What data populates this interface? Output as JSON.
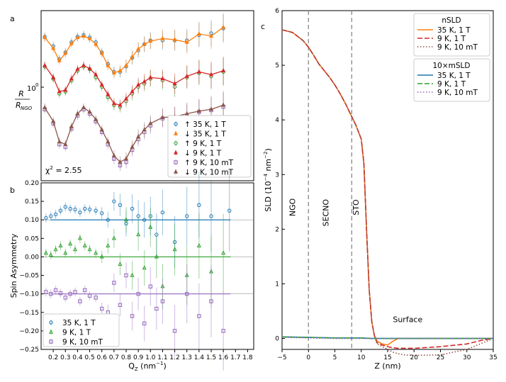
{
  "chart_data": [
    {
      "panel_label": "a",
      "type": "scatter",
      "ylabel": "R / R_NGO",
      "ylabel_num": "R",
      "ylabel_den": "R",
      "ylabel_den_sub": "NGO",
      "ytick_label": "10",
      "ytick_exp": "0",
      "yscale": "log",
      "xlim": [
        0.1,
        1.85
      ],
      "annotation": "χ² = 2.55",
      "annotation_base": "χ",
      "annotation_rest": " = 2.55",
      "legend": [
        "↑  35 K, 1 T",
        "↓  35 K, 1 T",
        "↑    9 K, 1 T",
        "↓    9 K, 1 T",
        "↑    9 K, 10 mT",
        "↓    9 K, 10 mT"
      ],
      "legend_position": "lower-right",
      "series": [
        {
          "name": "↑  35 K, 1 T",
          "color": "#1f77b4",
          "marker": "circle",
          "x": [
            0.13,
            0.2,
            0.25,
            0.3,
            0.35,
            0.4,
            0.45,
            0.5,
            0.55,
            0.6,
            0.65,
            0.7,
            0.75,
            0.8,
            0.85,
            0.9,
            0.95,
            1.0,
            1.1,
            1.2,
            1.3,
            1.4,
            1.5,
            1.6
          ],
          "y": [
            230,
            205,
            175,
            190,
            215,
            230,
            235,
            228,
            215,
            190,
            165,
            150,
            150,
            160,
            178,
            195,
            210,
            220,
            220,
            220,
            220,
            235,
            240,
            255
          ]
        },
        {
          "name": "↓  35 K, 1 T",
          "color": "#ff7f0e",
          "marker": "triangle",
          "x": [
            0.13,
            0.2,
            0.25,
            0.3,
            0.35,
            0.4,
            0.45,
            0.5,
            0.55,
            0.6,
            0.65,
            0.7,
            0.75,
            0.8,
            0.85,
            0.9,
            0.95,
            1.0,
            1.1,
            1.2,
            1.3,
            1.4,
            1.5,
            1.6
          ],
          "y": [
            228,
            200,
            172,
            188,
            212,
            228,
            232,
            225,
            210,
            188,
            162,
            148,
            152,
            162,
            180,
            198,
            210,
            218,
            225,
            222,
            215,
            238,
            232,
            258
          ]
        },
        {
          "name": "↑    9 K, 1 T",
          "color": "#2ca02c",
          "marker": "circle",
          "x": [
            0.13,
            0.2,
            0.25,
            0.3,
            0.35,
            0.4,
            0.45,
            0.5,
            0.55,
            0.6,
            0.65,
            0.7,
            0.75,
            0.8,
            0.85,
            0.9,
            0.95,
            1.0,
            1.1,
            1.2,
            1.3,
            1.4,
            1.5,
            1.6
          ],
          "y": [
            160,
            138,
            115,
            118,
            135,
            152,
            160,
            155,
            140,
            125,
            110,
            100,
            98,
            105,
            115,
            125,
            130,
            138,
            135,
            125,
            140,
            148,
            142,
            150
          ]
        },
        {
          "name": "↓    9 K, 1 T",
          "color": "#d62728",
          "marker": "triangle",
          "x": [
            0.13,
            0.2,
            0.25,
            0.3,
            0.35,
            0.4,
            0.45,
            0.5,
            0.55,
            0.6,
            0.65,
            0.7,
            0.75,
            0.8,
            0.85,
            0.9,
            0.95,
            1.0,
            1.1,
            1.2,
            1.3,
            1.4,
            1.5,
            1.6
          ],
          "y": [
            162,
            140,
            118,
            120,
            138,
            155,
            162,
            156,
            145,
            128,
            114,
            102,
            100,
            108,
            118,
            128,
            133,
            140,
            138,
            130,
            142,
            150,
            145,
            152
          ]
        },
        {
          "name": "↑    9 K, 10 mT",
          "color": "#9467bd",
          "marker": "square",
          "x": [
            0.13,
            0.2,
            0.25,
            0.3,
            0.35,
            0.4,
            0.45,
            0.5,
            0.55,
            0.6,
            0.65,
            0.7,
            0.75,
            0.8,
            0.85,
            0.9,
            0.95,
            1.0,
            1.1,
            1.2,
            1.3,
            1.4,
            1.5,
            1.6
          ],
          "y": [
            95,
            80,
            62,
            60,
            75,
            88,
            95,
            90,
            82,
            72,
            62,
            52,
            48,
            50,
            58,
            66,
            72,
            78,
            85,
            86,
            88,
            92,
            94,
            98
          ]
        },
        {
          "name": "↓    9 K, 10 mT",
          "color": "#8c564b",
          "marker": "triangle",
          "x": [
            0.13,
            0.2,
            0.25,
            0.3,
            0.35,
            0.4,
            0.45,
            0.5,
            0.55,
            0.6,
            0.65,
            0.7,
            0.75,
            0.8,
            0.85,
            0.9,
            0.95,
            1.0,
            1.1,
            1.2,
            1.3,
            1.4,
            1.5,
            1.6
          ],
          "y": [
            97,
            82,
            64,
            62,
            77,
            90,
            97,
            92,
            84,
            74,
            64,
            54,
            50,
            52,
            60,
            68,
            74,
            80,
            86,
            87,
            90,
            93,
            95,
            100
          ]
        }
      ]
    },
    {
      "panel_label": "b",
      "type": "scatter",
      "xlabel": "Q",
      "xlabel_sub": "Z",
      "xlabel_unit": "  (nm",
      "xlabel_sup": "−1",
      "xlabel_close": ")",
      "ylabel": "Spin Asymmetry",
      "xlim": [
        0.1,
        1.85
      ],
      "ylim": [
        -0.25,
        0.2
      ],
      "xticks": [
        0.2,
        0.3,
        0.4,
        0.5,
        0.6,
        0.7,
        0.8,
        0.9,
        1.0,
        1.1,
        1.2,
        1.3,
        1.4,
        1.5,
        1.6,
        1.7,
        1.8
      ],
      "xtick_labels": [
        "0.2",
        "0.3",
        "0.4",
        "0.5",
        "0.6",
        "0.7",
        "0.8",
        "0.9",
        "1.0",
        "1.1",
        "1.2",
        "1.3",
        "1.4",
        "1.5",
        "1.6",
        "1.7",
        "1.8"
      ],
      "yticks": [
        -0.25,
        -0.2,
        -0.15,
        -0.1,
        -0.05,
        0.0,
        0.05,
        0.1,
        0.15,
        0.2
      ],
      "ytick_labels": [
        "−0.25",
        "−0.20",
        "−0.15",
        "−0.10",
        "−0.05",
        "0.00",
        "0.05",
        "0.10",
        "0.15",
        "0.20"
      ],
      "reference_lines": [
        0.1,
        0.0,
        -0.1
      ],
      "legend": [
        "35 K, 1 T",
        "9 K, 1 T",
        "9 K, 10 mT"
      ],
      "legend_position": "lower-left",
      "series": [
        {
          "name": "35 K, 1 T",
          "color": "#1f77b4",
          "marker": "circle",
          "offset": 0.1,
          "x": [
            0.14,
            0.18,
            0.22,
            0.26,
            0.3,
            0.34,
            0.38,
            0.42,
            0.46,
            0.5,
            0.55,
            0.6,
            0.65,
            0.7,
            0.75,
            0.8,
            0.85,
            0.9,
            0.95,
            1.0,
            1.05,
            1.1,
            1.2,
            1.3,
            1.4,
            1.5,
            1.65
          ],
          "y": [
            0.105,
            0.11,
            0.115,
            0.125,
            0.135,
            0.13,
            0.128,
            0.12,
            0.13,
            0.128,
            0.125,
            0.118,
            0.1,
            0.15,
            0.14,
            0.09,
            0.13,
            0.11,
            0.1,
            0.11,
            0.06,
            0.12,
            0.04,
            0.11,
            0.14,
            0.11,
            0.125
          ]
        },
        {
          "name": "9 K, 1 T",
          "color": "#2ca02c",
          "marker": "triangle",
          "offset": 0.0,
          "x": [
            0.14,
            0.18,
            0.22,
            0.26,
            0.3,
            0.34,
            0.38,
            0.42,
            0.46,
            0.5,
            0.55,
            0.6,
            0.65,
            0.7,
            0.75,
            0.8,
            0.85,
            0.9,
            0.95,
            1.0,
            1.05,
            1.1,
            1.2,
            1.3,
            1.4,
            1.5,
            1.6
          ],
          "y": [
            0.01,
            0.005,
            0.02,
            0.03,
            0.01,
            0.035,
            0.02,
            0.05,
            0.03,
            0.02,
            0.01,
            0.0,
            0.03,
            0.05,
            -0.02,
            0.1,
            -0.05,
            0.06,
            -0.03,
            0.08,
            0.0,
            -0.08,
            0.02,
            -0.05,
            0.03,
            -0.04,
            0.01
          ]
        },
        {
          "name": "9 K, 10 mT",
          "color": "#9467bd",
          "marker": "square",
          "offset": -0.1,
          "x": [
            0.14,
            0.18,
            0.22,
            0.26,
            0.3,
            0.34,
            0.38,
            0.42,
            0.46,
            0.5,
            0.55,
            0.6,
            0.65,
            0.7,
            0.75,
            0.8,
            0.85,
            0.9,
            0.95,
            1.0,
            1.05,
            1.1,
            1.2,
            1.3,
            1.4,
            1.5,
            1.6
          ],
          "y": [
            -0.095,
            -0.1,
            -0.09,
            -0.098,
            -0.11,
            -0.1,
            -0.095,
            -0.12,
            -0.09,
            -0.105,
            -0.11,
            -0.14,
            -0.15,
            -0.07,
            -0.13,
            -0.05,
            -0.16,
            -0.1,
            -0.18,
            -0.08,
            -0.14,
            -0.12,
            -0.2,
            -0.1,
            -0.16,
            -0.12,
            -0.2
          ]
        }
      ]
    },
    {
      "panel_label": "c",
      "type": "line",
      "xlabel": "Z (nm)",
      "ylabel": "SLD (10",
      "ylabel_sup": "−4",
      "ylabel_mid": " nm",
      "ylabel_sup2": "−2",
      "ylabel_close": ")",
      "xlim": [
        -5,
        35
      ],
      "ylim": [
        -0.2,
        6
      ],
      "xticks": [
        -5,
        0,
        5,
        10,
        15,
        20,
        25,
        30,
        35
      ],
      "xtick_labels": [
        "−5",
        "0",
        "5",
        "10",
        "15",
        "20",
        "25",
        "30",
        "35"
      ],
      "yticks": [
        0,
        1,
        2,
        3,
        4,
        5,
        6
      ],
      "ytick_labels": [
        "0",
        "1",
        "2",
        "3",
        "4",
        "5",
        "6"
      ],
      "vertical_lines": [
        0,
        8.2
      ],
      "region_labels": [
        {
          "text": "NGO",
          "x": -2.5,
          "y": 2.4
        },
        {
          "text": "SECNO",
          "x": 3.8,
          "y": 2.3
        },
        {
          "text": "STO",
          "x": 9.5,
          "y": 2.4
        },
        {
          "text": "Surface",
          "x": 18.8,
          "y": 0.3
        }
      ],
      "legend_groups": [
        {
          "title": "nSLD",
          "entries": [
            "35 K, 1 T",
            "9 K, 1 T",
            "9 K, 10 mT"
          ]
        },
        {
          "title": "10×mSLD",
          "entries": [
            "35 K, 1 T",
            "9 K, 1 T",
            "9 K, 10 mT"
          ]
        }
      ],
      "legend_position": "upper-right",
      "series": [
        {
          "name": "35 K, 1 T",
          "group": "nSLD",
          "color": "#ff7f0e",
          "style": "solid",
          "x": [
            -5,
            -3,
            -1,
            0,
            1,
            2,
            3,
            4,
            5,
            6,
            7,
            8,
            9,
            10,
            10.5,
            11,
            11.5,
            12,
            12.5,
            13,
            14,
            15,
            16,
            17,
            18,
            20,
            25,
            30,
            35
          ],
          "y": [
            5.65,
            5.6,
            5.45,
            5.33,
            5.18,
            5.02,
            4.9,
            4.78,
            4.64,
            4.48,
            4.3,
            4.1,
            3.9,
            3.65,
            3.2,
            2.0,
            0.9,
            0.3,
            0.05,
            -0.05,
            -0.1,
            -0.12,
            -0.05,
            0,
            0,
            0,
            0,
            0,
            0
          ]
        },
        {
          "name": "9 K, 1 T",
          "group": "nSLD",
          "color": "#d62728",
          "style": "dashed",
          "x": [
            -5,
            -3,
            -1,
            0,
            1,
            2,
            3,
            4,
            5,
            6,
            7,
            8,
            9,
            10,
            10.5,
            11,
            11.5,
            12,
            12.5,
            13,
            14,
            15,
            16,
            17,
            18,
            20,
            25,
            30,
            33,
            35
          ],
          "y": [
            5.65,
            5.6,
            5.45,
            5.33,
            5.18,
            5.02,
            4.9,
            4.78,
            4.64,
            4.48,
            4.3,
            4.1,
            3.9,
            3.65,
            3.2,
            2.0,
            0.9,
            0.3,
            0.05,
            -0.08,
            -0.12,
            -0.15,
            -0.17,
            -0.18,
            -0.18,
            -0.18,
            -0.15,
            -0.1,
            -0.03,
            0
          ]
        },
        {
          "name": "9 K, 10 mT",
          "group": "nSLD",
          "color": "#8c564b",
          "style": "dotted",
          "x": [
            -5,
            -3,
            -1,
            0,
            1,
            2,
            3,
            4,
            5,
            6,
            7,
            8,
            9,
            10,
            10.5,
            11,
            11.5,
            12,
            12.5,
            13,
            14,
            15,
            16,
            17,
            18,
            20,
            25,
            30,
            33,
            35
          ],
          "y": [
            5.65,
            5.6,
            5.45,
            5.33,
            5.18,
            5.02,
            4.9,
            4.78,
            4.64,
            4.48,
            4.3,
            4.1,
            3.9,
            3.65,
            3.2,
            2.0,
            0.9,
            0.3,
            0.05,
            -0.1,
            -0.15,
            -0.2,
            -0.25,
            -0.28,
            -0.3,
            -0.31,
            -0.3,
            -0.2,
            -0.08,
            0
          ]
        },
        {
          "name": "35 K, 1 T",
          "group": "10×mSLD",
          "color": "#1f77b4",
          "style": "solid",
          "x": [
            -5,
            0,
            5,
            10,
            12,
            15,
            20,
            25,
            30,
            35
          ],
          "y": [
            0.03,
            0.02,
            0.01,
            0.01,
            0.0,
            0.0,
            0.0,
            0.0,
            0.0,
            0.0
          ]
        },
        {
          "name": "9 K, 1 T",
          "group": "10×mSLD",
          "color": "#2ca02c",
          "style": "dashed",
          "x": [
            -5,
            0,
            5,
            10,
            12,
            15,
            20,
            25,
            30,
            35
          ],
          "y": [
            0.03,
            0.02,
            0.01,
            0.01,
            0.0,
            0.0,
            0.0,
            0.0,
            0.0,
            0.0
          ]
        },
        {
          "name": "9 K, 10 mT",
          "group": "10×mSLD",
          "color": "#9467bd",
          "style": "dotted",
          "x": [
            -5,
            0,
            5,
            10,
            12,
            15,
            20,
            25,
            30,
            35
          ],
          "y": [
            0.02,
            0.01,
            0.0,
            0.0,
            0.0,
            0.0,
            0.0,
            0.0,
            0.0,
            0.0
          ]
        }
      ]
    }
  ]
}
